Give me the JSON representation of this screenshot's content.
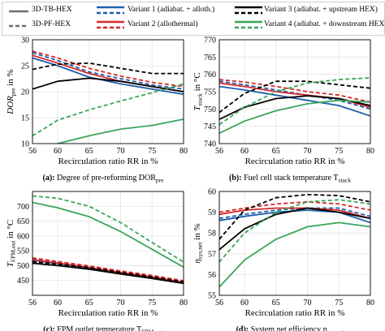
{
  "legend": {
    "line_styles": [
      {
        "label": "3D-TB-HEX",
        "style": "solid",
        "color": "#6e6e6e"
      },
      {
        "label": "3D-PF-HEX",
        "style": "dashed",
        "color": "#6e6e6e"
      }
    ],
    "variants": [
      {
        "label": "Variant 1 (adiabat. + alloth.)",
        "color": "#1f5fad"
      },
      {
        "label": "Variant 2 (allothermal)",
        "color": "#d62728"
      },
      {
        "label": "Variant 3 (adiabat. + upstream HEX)",
        "color": "#000000"
      },
      {
        "label": "Variant 4 (adiabat. + downstream HEX)",
        "color": "#3aa65a"
      }
    ]
  },
  "chart_data": [
    {
      "type": "line",
      "caption": "(a): Degree of pre-reforming DOR",
      "caption_sub": "pre",
      "xlabel": "Recirculation ratio RR in %",
      "ylabel": "DOR",
      "ylabel_sub": "pre",
      "ylabel_suffix": " in %",
      "xlim": [
        56,
        80
      ],
      "ylim": [
        10,
        30
      ],
      "xticks": [
        "56",
        "60",
        "65",
        "70",
        "75",
        "80"
      ],
      "yticks": [
        "10",
        "15",
        "20",
        "25",
        "30"
      ],
      "x": [
        56,
        60,
        65,
        70,
        75,
        80
      ],
      "series": [
        {
          "name": "Variant 1 (adiabat. + alloth.)",
          "style": "solid",
          "color": "#1f5fad",
          "values": [
            26.5,
            25.0,
            22.8,
            21.5,
            20.5,
            19.5
          ]
        },
        {
          "name": "Variant 1 (adiabat. + alloth.)",
          "style": "dashed",
          "color": "#1f5fad",
          "values": [
            27.5,
            26.0,
            23.8,
            22.5,
            21.3,
            20.5
          ]
        },
        {
          "name": "Variant 2 (allothermal)",
          "style": "solid",
          "color": "#d62728",
          "values": [
            27.0,
            25.5,
            23.5,
            22.0,
            21.0,
            20.0
          ]
        },
        {
          "name": "Variant 2 (allothermal)",
          "style": "dashed",
          "color": "#d62728",
          "values": [
            27.8,
            26.5,
            24.5,
            23.0,
            21.8,
            21.0
          ]
        },
        {
          "name": "Variant 3 (adiabat. + upstream HEX)",
          "style": "solid",
          "color": "#000000",
          "values": [
            20.5,
            22.0,
            22.6,
            22.0,
            21.0,
            20.0
          ]
        },
        {
          "name": "Variant 3 (adiabat. + upstream HEX)",
          "style": "dashed",
          "color": "#000000",
          "values": [
            24.3,
            25.3,
            25.5,
            24.5,
            23.5,
            23.5
          ]
        },
        {
          "name": "Variant 4 (adiabat. + downstream HEX)",
          "style": "solid",
          "color": "#3aa65a",
          "values": [
            8.5,
            10.0,
            11.5,
            12.8,
            13.5,
            14.7
          ]
        },
        {
          "name": "Variant 4 (adiabat. + downstream HEX)",
          "style": "dashed",
          "color": "#3aa65a",
          "values": [
            11.5,
            14.5,
            16.5,
            18.2,
            19.8,
            21.5
          ]
        }
      ]
    },
    {
      "type": "line",
      "caption": "(b): Fuel cell stack temperature T",
      "caption_sub": "stack",
      "xlabel": "Recirculation ratio RR in %",
      "ylabel": "T",
      "ylabel_sub": "stack",
      "ylabel_suffix": " in °C",
      "xlim": [
        56,
        80
      ],
      "ylim": [
        740,
        770
      ],
      "xticks": [
        "56",
        "60",
        "65",
        "70",
        "75",
        "80"
      ],
      "yticks": [
        "740",
        "745",
        "750",
        "755",
        "760",
        "765",
        "770"
      ],
      "x": [
        56,
        60,
        65,
        70,
        75,
        80
      ],
      "series": [
        {
          "name": "Variant 1 (adiabat. + alloth.)",
          "style": "solid",
          "color": "#1f5fad",
          "values": [
            756.5,
            755.5,
            754.0,
            752.5,
            751.0,
            748.0
          ]
        },
        {
          "name": "Variant 1 (adiabat. + alloth.)",
          "style": "dashed",
          "color": "#1f5fad",
          "values": [
            758.0,
            757.0,
            755.5,
            754.0,
            752.5,
            750.0
          ]
        },
        {
          "name": "Variant 2 (allothermal)",
          "style": "solid",
          "color": "#d62728",
          "values": [
            757.5,
            756.5,
            755.0,
            754.0,
            753.0,
            750.5
          ]
        },
        {
          "name": "Variant 2 (allothermal)",
          "style": "dashed",
          "color": "#d62728",
          "values": [
            758.5,
            757.8,
            756.5,
            755.0,
            754.0,
            752.0
          ]
        },
        {
          "name": "Variant 3 (adiabat. + upstream HEX)",
          "style": "solid",
          "color": "#000000",
          "values": [
            747.0,
            750.5,
            753.0,
            753.8,
            753.0,
            751.0
          ]
        },
        {
          "name": "Variant 3 (adiabat. + upstream HEX)",
          "style": "dashed",
          "color": "#000000",
          "values": [
            749.0,
            754.5,
            758.0,
            758.0,
            757.0,
            756.0
          ]
        },
        {
          "name": "Variant 4 (adiabat. + downstream HEX)",
          "style": "solid",
          "color": "#3aa65a",
          "values": [
            743.0,
            746.5,
            749.5,
            751.5,
            752.5,
            752.0
          ]
        },
        {
          "name": "Variant 4 (adiabat. + downstream HEX)",
          "style": "dashed",
          "color": "#3aa65a",
          "values": [
            745.5,
            750.5,
            755.0,
            757.5,
            758.5,
            759.0
          ]
        }
      ]
    },
    {
      "type": "line",
      "caption": "(c): FPM outlet temperature T",
      "caption_sub": "FPM,out",
      "xlabel": "Recirculation ratio RR in %",
      "ylabel": "T",
      "ylabel_sub": "FPM,out",
      "ylabel_suffix": " in °C",
      "xlim": [
        56,
        80
      ],
      "ylim": [
        400,
        750
      ],
      "xticks": [
        "56",
        "60",
        "65",
        "70",
        "75",
        "80"
      ],
      "yticks": [
        "450",
        "500",
        "550",
        "600",
        "650",
        "700"
      ],
      "x": [
        56,
        60,
        65,
        70,
        75,
        80
      ],
      "series": [
        {
          "name": "Variant 1 (adiabat. + alloth.)",
          "style": "solid",
          "color": "#1f5fad",
          "values": [
            518,
            507,
            492,
            475,
            460,
            442
          ]
        },
        {
          "name": "Variant 1 (adiabat. + alloth.)",
          "style": "dashed",
          "color": "#1f5fad",
          "values": [
            522,
            511,
            496,
            479,
            464,
            446
          ]
        },
        {
          "name": "Variant 2 (allothermal)",
          "style": "solid",
          "color": "#d62728",
          "values": [
            520,
            509,
            494,
            477,
            462,
            444
          ]
        },
        {
          "name": "Variant 2 (allothermal)",
          "style": "dashed",
          "color": "#d62728",
          "values": [
            526,
            514,
            499,
            482,
            467,
            449
          ]
        },
        {
          "name": "Variant 3 (adiabat. + upstream HEX)",
          "style": "solid",
          "color": "#000000",
          "values": [
            508,
            500,
            488,
            472,
            457,
            440
          ]
        },
        {
          "name": "Variant 3 (adiabat. + upstream HEX)",
          "style": "dashed",
          "color": "#000000",
          "values": [
            513,
            505,
            493,
            477,
            462,
            445
          ]
        },
        {
          "name": "Variant 4 (adiabat. + downstream HEX)",
          "style": "solid",
          "color": "#3aa65a",
          "values": [
            713,
            695,
            665,
            615,
            555,
            495
          ]
        },
        {
          "name": "Variant 4 (adiabat. + downstream HEX)",
          "style": "dashed",
          "color": "#3aa65a",
          "values": [
            735,
            727,
            700,
            645,
            578,
            512
          ]
        }
      ]
    },
    {
      "type": "line",
      "caption": "(d): System net efficiency η",
      "caption_sub": "sys,net",
      "xlabel": "Recirculation ratio RR in %",
      "ylabel": "η",
      "ylabel_sub": "sys,net",
      "ylabel_suffix": " in %",
      "xlim": [
        56,
        80
      ],
      "ylim": [
        55,
        60
      ],
      "xticks": [
        "56",
        "60",
        "65",
        "70",
        "75",
        "80"
      ],
      "yticks": [
        "55",
        "56",
        "57",
        "58",
        "59",
        "60"
      ],
      "x": [
        56,
        60,
        65,
        70,
        75,
        80
      ],
      "series": [
        {
          "name": "Variant 1 (adiabat. + alloth.)",
          "style": "solid",
          "color": "#1f5fad",
          "values": [
            58.6,
            58.8,
            59.0,
            59.1,
            59.0,
            58.5
          ]
        },
        {
          "name": "Variant 1 (adiabat. + alloth.)",
          "style": "dashed",
          "color": "#1f5fad",
          "values": [
            58.7,
            58.9,
            59.1,
            59.2,
            59.2,
            58.8
          ]
        },
        {
          "name": "Variant 2 (allothermal)",
          "style": "solid",
          "color": "#d62728",
          "values": [
            58.9,
            59.1,
            59.2,
            59.2,
            59.1,
            58.7
          ]
        },
        {
          "name": "Variant 2 (allothermal)",
          "style": "dashed",
          "color": "#d62728",
          "values": [
            59.0,
            59.2,
            59.4,
            59.5,
            59.4,
            59.1
          ]
        },
        {
          "name": "Variant 3 (adiabat. + upstream HEX)",
          "style": "solid",
          "color": "#000000",
          "values": [
            57.2,
            58.2,
            58.9,
            59.2,
            59.0,
            58.7
          ]
        },
        {
          "name": "Variant 3 (adiabat. + upstream HEX)",
          "style": "dashed",
          "color": "#000000",
          "values": [
            57.7,
            59.1,
            59.7,
            59.85,
            59.8,
            59.5
          ]
        },
        {
          "name": "Variant 4 (adiabat. + downstream HEX)",
          "style": "solid",
          "color": "#3aa65a",
          "values": [
            55.4,
            56.7,
            57.7,
            58.3,
            58.5,
            58.3
          ]
        },
        {
          "name": "Variant 4 (adiabat. + downstream HEX)",
          "style": "dashed",
          "color": "#3aa65a",
          "values": [
            56.6,
            58.0,
            59.0,
            59.5,
            59.6,
            59.4
          ]
        }
      ]
    }
  ]
}
